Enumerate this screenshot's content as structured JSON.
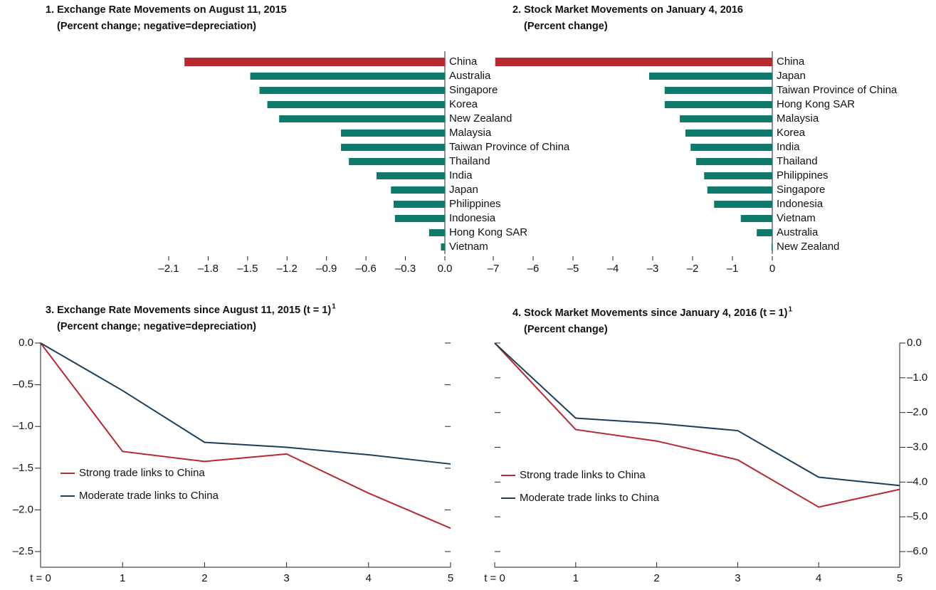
{
  "chart_data": [
    {
      "type": "bar",
      "orientation": "horizontal",
      "axis_position": "right",
      "title": "1. Exchange Rate Movements on August 11, 2015",
      "subtitle": "(Percent change; negative=depreciation)",
      "categories": [
        "China",
        "Australia",
        "Singapore",
        "Korea",
        "New Zealand",
        "Malaysia",
        "Taiwan Province of China",
        "Thailand",
        "India",
        "Japan",
        "Philippines",
        "Indonesia",
        "Hong Kong SAR",
        "Vietnam"
      ],
      "values": [
        -1.98,
        -1.48,
        -1.41,
        -1.35,
        -1.26,
        -0.79,
        -0.79,
        -0.73,
        -0.52,
        -0.41,
        -0.39,
        -0.38,
        -0.12,
        -0.03
      ],
      "colors": [
        "#b5292f",
        "#0e7a6b",
        "#0e7a6b",
        "#0e7a6b",
        "#0e7a6b",
        "#0e7a6b",
        "#0e7a6b",
        "#0e7a6b",
        "#0e7a6b",
        "#0e7a6b",
        "#0e7a6b",
        "#0e7a6b",
        "#0e7a6b",
        "#0e7a6b"
      ],
      "xlim": [
        -2.1,
        0
      ],
      "xticks": [
        {
          "value": -2.1,
          "label": "–2.1"
        },
        {
          "value": -1.8,
          "label": "–1.8"
        },
        {
          "value": -1.5,
          "label": "–1.5"
        },
        {
          "value": -1.2,
          "label": "–1.2"
        },
        {
          "value": -0.9,
          "label": "–0.9"
        },
        {
          "value": -0.6,
          "label": "–0.6"
        },
        {
          "value": -0.3,
          "label": "–0.3"
        },
        {
          "value": 0,
          "label": "0.0"
        }
      ]
    },
    {
      "type": "bar",
      "orientation": "horizontal",
      "axis_position": "right",
      "title": "2. Stock Market Movements on January 4, 2016",
      "subtitle": "(Percent change)",
      "categories": [
        "China",
        "Japan",
        "Taiwan Province of China",
        "Hong Kong SAR",
        "Malaysia",
        "Korea",
        "India",
        "Thailand",
        "Philippines",
        "Singapore",
        "Indonesia",
        "Vietnam",
        "Australia",
        "New Zealand"
      ],
      "values": [
        -6.95,
        -3.09,
        -2.7,
        -2.7,
        -2.32,
        -2.18,
        -2.05,
        -1.91,
        -1.71,
        -1.63,
        -1.46,
        -0.79,
        -0.39,
        -0.02
      ],
      "colors": [
        "#b5292f",
        "#0e7a6b",
        "#0e7a6b",
        "#0e7a6b",
        "#0e7a6b",
        "#0e7a6b",
        "#0e7a6b",
        "#0e7a6b",
        "#0e7a6b",
        "#0e7a6b",
        "#0e7a6b",
        "#0e7a6b",
        "#0e7a6b",
        "#0e7a6b"
      ],
      "xlim": [
        -7,
        0
      ],
      "xticks": [
        {
          "value": -7,
          "label": "–7"
        },
        {
          "value": -6,
          "label": "–6"
        },
        {
          "value": -5,
          "label": "–5"
        },
        {
          "value": -4,
          "label": "–4"
        },
        {
          "value": -3,
          "label": "–3"
        },
        {
          "value": -2,
          "label": "–2"
        },
        {
          "value": -1,
          "label": "–1"
        },
        0
      ]
    },
    {
      "type": "line",
      "axis_position": "left",
      "title": "3. Exchange Rate Movements since August 11, 2015 (t = 1)",
      "title_note": "1",
      "subtitle": "(Percent change; negative=depreciation)",
      "categories": [
        "t = 0",
        "1",
        "2",
        "3",
        "4",
        "5"
      ],
      "series": [
        {
          "name": "Strong trade links to China",
          "color": "#b5292f",
          "values": [
            0,
            -1.3,
            -1.42,
            -1.33,
            -1.8,
            -2.22
          ]
        },
        {
          "name": "Moderate trade links to China",
          "color": "#1b3f5e",
          "values": [
            0,
            -0.57,
            -1.19,
            -1.25,
            -1.34,
            -1.45
          ]
        }
      ],
      "ylim": [
        -2.5,
        0
      ],
      "yticks": [
        {
          "value": 0,
          "label": "0.0"
        },
        {
          "value": -0.5,
          "label": "–0.5"
        },
        {
          "value": -1,
          "label": "–1.0"
        },
        {
          "value": -1.5,
          "label": "–1.5"
        },
        {
          "value": -2,
          "label": "–2.0"
        },
        {
          "value": -2.5,
          "label": "–2.5"
        }
      ]
    },
    {
      "type": "line",
      "axis_position": "right",
      "title": "4. Stock Market Movements since January 4, 2016 (t = 1)",
      "title_note": "1",
      "subtitle": "(Percent change)",
      "categories": [
        "t = 0",
        "1",
        "2",
        "3",
        "4",
        "5"
      ],
      "series": [
        {
          "name": "Strong trade links to China",
          "color": "#b5292f",
          "values": [
            0,
            -2.49,
            -2.82,
            -3.36,
            -4.72,
            -4.21
          ]
        },
        {
          "name": "Moderate trade links to China",
          "color": "#1b3f5e",
          "values": [
            0,
            -2.16,
            -2.31,
            -2.52,
            -3.86,
            -4.1
          ]
        }
      ],
      "ylim": [
        -6,
        0
      ],
      "yticks": [
        {
          "value": 0,
          "label": "0.0"
        },
        {
          "value": -1,
          "label": "–1.0"
        },
        {
          "value": -2,
          "label": "–2.0"
        },
        {
          "value": -3,
          "label": "–3.0"
        },
        {
          "value": -4,
          "label": "–4.0"
        },
        {
          "value": -5,
          "label": "–5.0"
        },
        {
          "value": -6,
          "label": "–6.0"
        }
      ]
    }
  ]
}
